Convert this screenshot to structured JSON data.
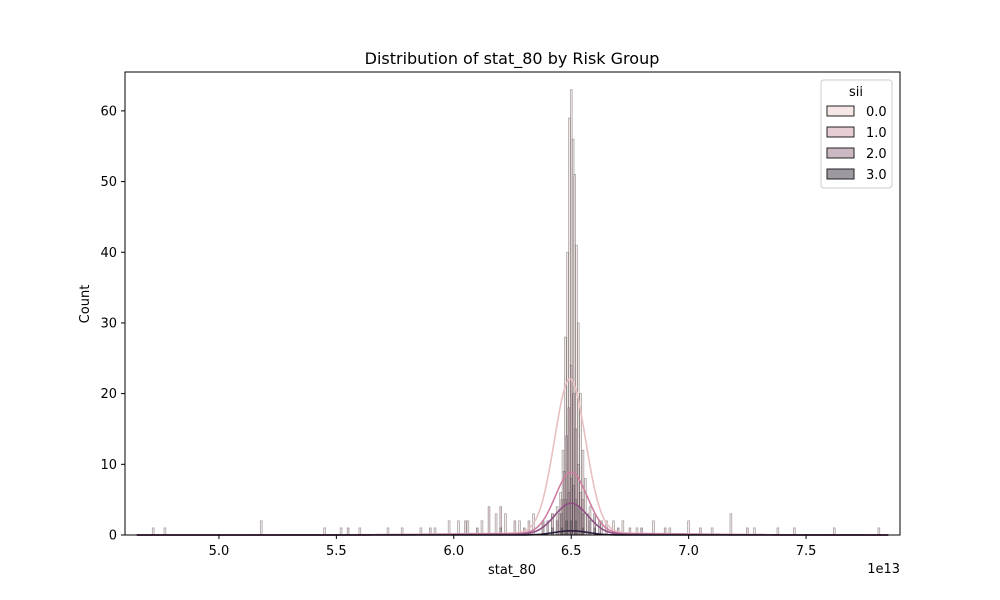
{
  "chart_data": {
    "type": "bar",
    "title": "Distribution of stat_80 by Risk Group",
    "xlabel": "stat_80",
    "ylabel": "Count",
    "x_offset_label": "1e13",
    "xlim": [
      4.6,
      7.9
    ],
    "ylim": [
      0,
      65.5
    ],
    "x_ticks": [
      5.0,
      5.5,
      6.0,
      6.5,
      7.0,
      7.5
    ],
    "x_tick_labels": [
      "5.0",
      "5.5",
      "6.0",
      "6.5",
      "7.0",
      "7.5"
    ],
    "y_ticks": [
      0,
      10,
      20,
      30,
      40,
      50,
      60
    ],
    "y_tick_labels": [
      "0",
      "10",
      "20",
      "30",
      "40",
      "50",
      "60"
    ],
    "legend": {
      "title": "sii",
      "position": "top-right"
    },
    "series": [
      {
        "name": "0.0",
        "color": "#efd7d6",
        "kde_color": "#e8c0c1",
        "bins": [
          [
            4.72,
            1
          ],
          [
            4.77,
            1
          ],
          [
            5.18,
            2
          ],
          [
            5.45,
            1
          ],
          [
            5.52,
            1
          ],
          [
            5.6,
            1
          ],
          [
            5.72,
            1
          ],
          [
            5.78,
            1
          ],
          [
            5.86,
            1
          ],
          [
            5.92,
            1
          ],
          [
            5.98,
            2
          ],
          [
            6.02,
            2
          ],
          [
            6.06,
            2
          ],
          [
            6.12,
            2
          ],
          [
            6.18,
            3
          ],
          [
            6.22,
            3
          ],
          [
            6.28,
            2
          ],
          [
            6.34,
            3
          ],
          [
            6.38,
            2
          ],
          [
            6.42,
            3
          ],
          [
            6.44,
            4
          ],
          [
            6.455,
            6
          ],
          [
            6.465,
            12
          ],
          [
            6.475,
            28
          ],
          [
            6.485,
            40
          ],
          [
            6.493,
            59
          ],
          [
            6.5,
            63
          ],
          [
            6.508,
            56
          ],
          [
            6.515,
            51
          ],
          [
            6.522,
            41
          ],
          [
            6.53,
            30
          ],
          [
            6.54,
            20
          ],
          [
            6.55,
            12
          ],
          [
            6.56,
            8
          ],
          [
            6.58,
            4
          ],
          [
            6.6,
            3
          ],
          [
            6.63,
            2
          ],
          [
            6.68,
            2
          ],
          [
            6.72,
            2
          ],
          [
            6.78,
            1
          ],
          [
            6.85,
            2
          ],
          [
            6.92,
            1
          ],
          [
            7.0,
            2
          ],
          [
            7.1,
            1
          ],
          [
            7.18,
            3
          ],
          [
            7.28,
            1
          ],
          [
            7.38,
            1
          ],
          [
            7.45,
            1
          ],
          [
            7.62,
            1
          ],
          [
            7.81,
            1
          ]
        ],
        "kde_peak": 21.8,
        "kde_center": 6.495,
        "kde_sigma": 0.066,
        "kde_base": 0.3
      },
      {
        "name": "1.0",
        "color": "#d8aeb8",
        "kde_color": "#cf7fa2",
        "bins": [
          [
            5.55,
            1
          ],
          [
            5.9,
            1
          ],
          [
            6.05,
            2
          ],
          [
            6.15,
            4
          ],
          [
            6.2,
            4
          ],
          [
            6.26,
            2
          ],
          [
            6.32,
            2
          ],
          [
            6.38,
            2
          ],
          [
            6.42,
            3
          ],
          [
            6.45,
            3
          ],
          [
            6.46,
            5
          ],
          [
            6.47,
            9
          ],
          [
            6.48,
            14
          ],
          [
            6.49,
            18
          ],
          [
            6.5,
            24
          ],
          [
            6.51,
            20
          ],
          [
            6.52,
            15
          ],
          [
            6.53,
            10
          ],
          [
            6.54,
            6
          ],
          [
            6.55,
            5
          ],
          [
            6.57,
            3
          ],
          [
            6.6,
            3
          ],
          [
            6.65,
            2
          ],
          [
            6.75,
            1
          ],
          [
            6.9,
            1
          ],
          [
            7.05,
            1
          ],
          [
            7.25,
            1
          ]
        ],
        "kde_peak": 8.7,
        "kde_center": 6.5,
        "kde_sigma": 0.068,
        "kde_base": 0.2
      },
      {
        "name": "2.0",
        "color": "#a8889a",
        "kde_color": "#8f4f84",
        "bins": [
          [
            6.1,
            1
          ],
          [
            6.2,
            1
          ],
          [
            6.3,
            1
          ],
          [
            6.4,
            2
          ],
          [
            6.44,
            2
          ],
          [
            6.46,
            3
          ],
          [
            6.475,
            5
          ],
          [
            6.49,
            6
          ],
          [
            6.5,
            8
          ],
          [
            6.51,
            7
          ],
          [
            6.52,
            5
          ],
          [
            6.535,
            4
          ],
          [
            6.55,
            3
          ],
          [
            6.58,
            2
          ],
          [
            6.62,
            2
          ],
          [
            6.7,
            1
          ],
          [
            6.8,
            1
          ]
        ],
        "kde_peak": 4.4,
        "kde_center": 6.5,
        "kde_sigma": 0.07,
        "kde_base": 0.1
      },
      {
        "name": "3.0",
        "color": "#5d5463",
        "kde_color": "#2c1e3d",
        "bins": [
          [
            6.42,
            1
          ],
          [
            6.46,
            1
          ],
          [
            6.48,
            2
          ],
          [
            6.5,
            2
          ],
          [
            6.52,
            2
          ],
          [
            6.55,
            1
          ],
          [
            6.6,
            1
          ]
        ],
        "kde_peak": 0.6,
        "kde_center": 6.5,
        "kde_sigma": 0.07,
        "kde_base": 0.0
      }
    ]
  }
}
